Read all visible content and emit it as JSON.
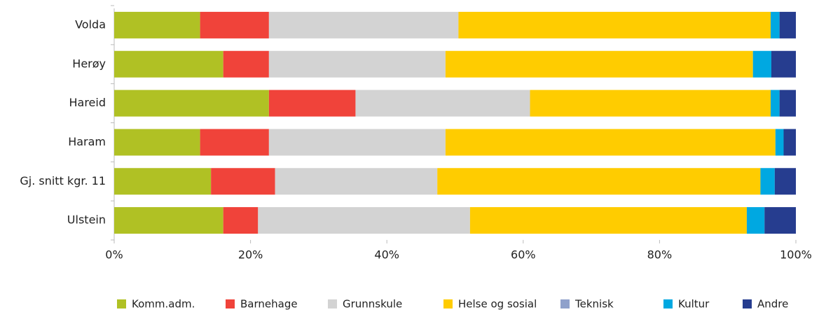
{
  "chart_data": {
    "type": "stacked_barh",
    "categories": [
      "Volda",
      "Herøy",
      "Hareid",
      "Haram",
      "Gj. snitt kgr. 11",
      "Ulstein"
    ],
    "series": [
      {
        "name": "Komm.adm.",
        "color": "#b0c124",
        "values": [
          12.6,
          16.0,
          22.7,
          12.6,
          14.2,
          16.0
        ]
      },
      {
        "name": "Barnehage",
        "color": "#f0433a",
        "values": [
          10.1,
          6.7,
          12.7,
          10.1,
          9.4,
          5.1
        ]
      },
      {
        "name": "Grunnskule",
        "color": "#d3d3d3",
        "values": [
          27.8,
          25.9,
          25.6,
          25.9,
          23.8,
          31.1
        ]
      },
      {
        "name": "Helse og sosial",
        "color": "#ffcc00",
        "values": [
          45.8,
          45.1,
          35.3,
          48.4,
          47.4,
          40.6
        ]
      },
      {
        "name": "Teknisk",
        "color": "#8fa1cb",
        "values": [
          0,
          0,
          0,
          0,
          0,
          0
        ]
      },
      {
        "name": "Kultur",
        "color": "#00a8e1",
        "values": [
          1.3,
          2.7,
          1.3,
          1.2,
          2.1,
          2.6
        ]
      },
      {
        "name": "Andre",
        "color": "#263d8f",
        "values": [
          2.4,
          3.6,
          2.4,
          1.8,
          3.1,
          4.6
        ]
      }
    ],
    "xlim": [
      0,
      100
    ],
    "xticks": [
      {
        "value": 0,
        "label": "0%"
      },
      {
        "value": 20,
        "label": "20%"
      },
      {
        "value": 40,
        "label": "40%"
      },
      {
        "value": 60,
        "label": "60%"
      },
      {
        "value": 80,
        "label": "80%"
      },
      {
        "value": 100,
        "label": "100%"
      }
    ],
    "legend": "bottom"
  }
}
